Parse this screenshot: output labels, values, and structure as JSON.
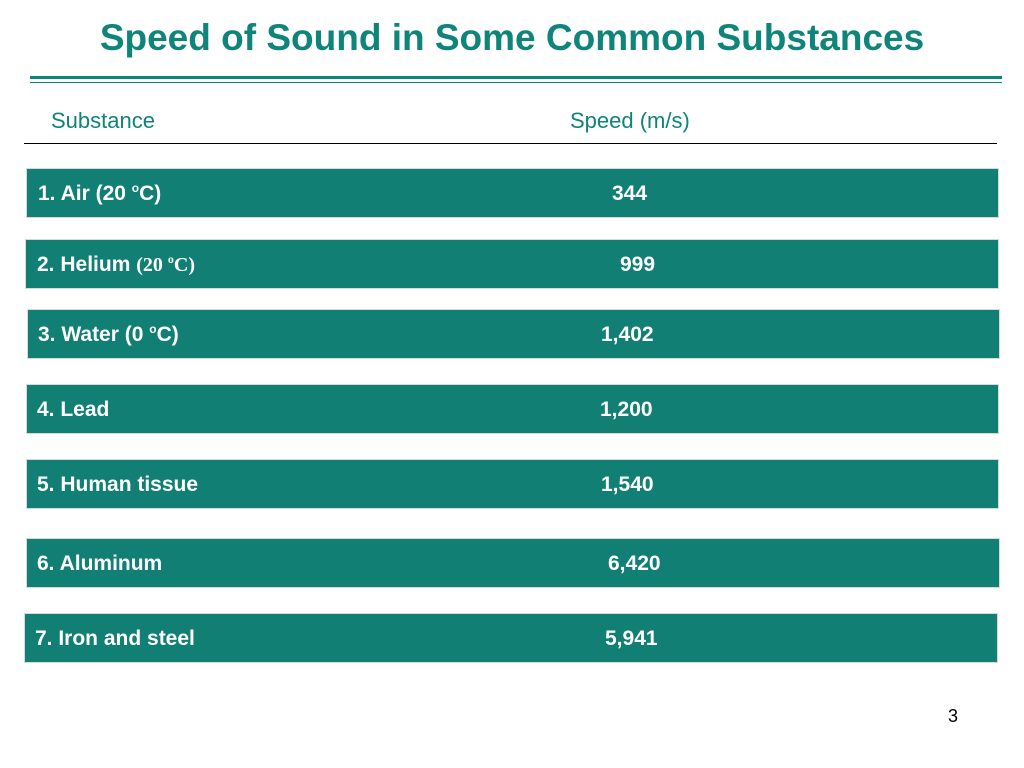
{
  "slide": {
    "title": "Speed of Sound in Some Common Substances",
    "page_number": "3"
  },
  "table": {
    "headers": {
      "substance": "Substance",
      "speed": "Speed (m/s)"
    },
    "rows": [
      {
        "name_prefix": "1. Air (20 ",
        "degree": "o",
        "name_suffix": "C)",
        "speed": "344"
      },
      {
        "name_prefix": "2. Helium ",
        "serif_prefix": "(20 ",
        "degree": "o",
        "serif_suffix": "C)",
        "speed": "999"
      },
      {
        "name_prefix": "3. Water (0 ",
        "degree": "o",
        "name_suffix": "C)",
        "speed": "1,402"
      },
      {
        "name_prefix": "4. Lead",
        "speed": "1,200"
      },
      {
        "name_prefix": "5. Human tissue",
        "speed": "1,540"
      },
      {
        "name_prefix": "6. Aluminum",
        "speed": "6,420"
      },
      {
        "name_prefix": "7. Iron and steel",
        "speed": "5,941"
      }
    ]
  },
  "colors": {
    "accent": "#0f8478",
    "row_fill": "#117f74",
    "row_text": "#ffffff"
  }
}
